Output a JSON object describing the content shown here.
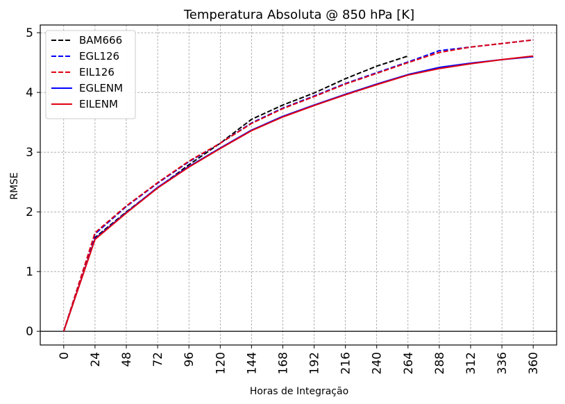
{
  "chart_data": {
    "type": "line",
    "title": "Temperatura Absoluta @ 850 hPa [K]",
    "xlabel": "Horas de Integração",
    "ylabel": "RMSE",
    "x": [
      0,
      24,
      48,
      72,
      96,
      120,
      144,
      168,
      192,
      216,
      240,
      264,
      288,
      312,
      336,
      360
    ],
    "xticks": [
      "0",
      "24",
      "48",
      "72",
      "96",
      "120",
      "144",
      "168",
      "192",
      "216",
      "240",
      "264",
      "288",
      "312",
      "336",
      "360"
    ],
    "yticks": [
      "0",
      "1",
      "2",
      "3",
      "4",
      "5"
    ],
    "xlim": [
      -18,
      378
    ],
    "ylim": [
      -0.23,
      5.13
    ],
    "grid": true,
    "legend_position": "top-left",
    "zero_line": true,
    "series": [
      {
        "name": "BAM666",
        "color": "#000000",
        "style": "dashed",
        "values": [
          0,
          1.57,
          2.0,
          2.4,
          2.79,
          3.15,
          3.55,
          3.79,
          3.99,
          4.23,
          4.44,
          4.61,
          null,
          null,
          null,
          null
        ]
      },
      {
        "name": "EGL126",
        "color": "#0000ff",
        "style": "dashed",
        "values": [
          0,
          1.63,
          2.09,
          2.48,
          2.84,
          3.15,
          3.49,
          3.74,
          3.94,
          4.15,
          4.33,
          4.51,
          4.7,
          4.76,
          4.82,
          4.88
        ]
      },
      {
        "name": "EIL126",
        "color": "#e0000f",
        "style": "dashed",
        "values": [
          0,
          1.65,
          2.1,
          2.49,
          2.85,
          3.15,
          3.48,
          3.73,
          3.93,
          4.14,
          4.32,
          4.5,
          4.67,
          4.76,
          4.82,
          4.88
        ]
      },
      {
        "name": "EGLENM",
        "color": "#0000ff",
        "style": "solid",
        "values": [
          0,
          1.55,
          1.99,
          2.41,
          2.76,
          3.07,
          3.37,
          3.6,
          3.79,
          3.97,
          4.14,
          4.3,
          4.42,
          4.49,
          4.55,
          4.6
        ]
      },
      {
        "name": "EILENM",
        "color": "#e0000f",
        "style": "solid",
        "values": [
          0,
          1.54,
          1.98,
          2.4,
          2.75,
          3.06,
          3.36,
          3.59,
          3.78,
          3.96,
          4.13,
          4.29,
          4.4,
          4.48,
          4.55,
          4.61
        ]
      }
    ]
  }
}
